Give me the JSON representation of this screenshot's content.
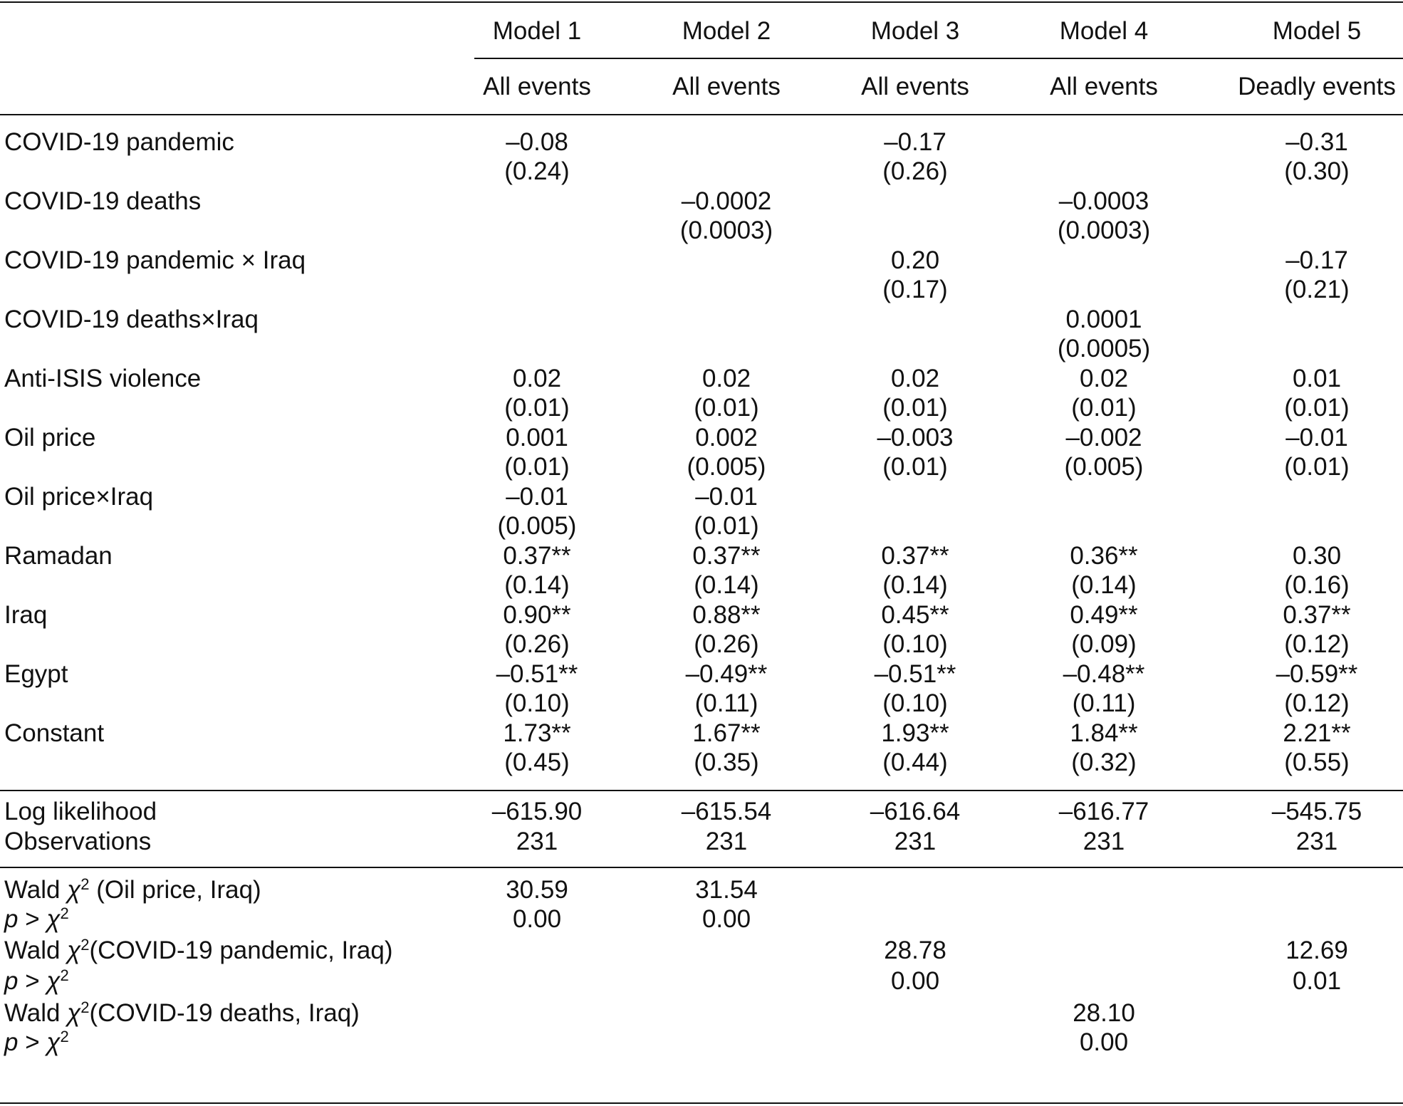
{
  "table": {
    "models": [
      "Model 1",
      "Model 2",
      "Model 3",
      "Model 4",
      "Model 5"
    ],
    "samples": [
      "All events",
      "All events",
      "All events",
      "All events",
      "Deadly events"
    ],
    "rows": [
      {
        "label": "COVID-19 pandemic",
        "coef": [
          "–0.08",
          null,
          "–0.17",
          null,
          "–0.31"
        ],
        "se": [
          "(0.24)",
          null,
          "(0.26)",
          null,
          "(0.30)"
        ]
      },
      {
        "label": "COVID-19 deaths",
        "coef": [
          null,
          "–0.0002",
          null,
          "–0.0003",
          null
        ],
        "se": [
          null,
          "(0.0003)",
          null,
          "(0.0003)",
          null
        ]
      },
      {
        "label": "COVID-19 pandemic × Iraq",
        "coef": [
          null,
          null,
          "0.20",
          null,
          "–0.17"
        ],
        "se": [
          null,
          null,
          "(0.17)",
          null,
          "(0.21)"
        ]
      },
      {
        "label": "COVID-19 deaths×Iraq",
        "coef": [
          null,
          null,
          null,
          "0.0001",
          null
        ],
        "se": [
          null,
          null,
          null,
          "(0.0005)",
          null
        ]
      },
      {
        "label": "Anti-ISIS violence",
        "coef": [
          "0.02",
          "0.02",
          "0.02",
          "0.02",
          "0.01"
        ],
        "se": [
          "(0.01)",
          "(0.01)",
          "(0.01)",
          "(0.01)",
          "(0.01)"
        ]
      },
      {
        "label": "Oil price",
        "coef": [
          "0.001",
          "0.002",
          "–0.003",
          "–0.002",
          "–0.01"
        ],
        "se": [
          "(0.01)",
          "(0.005)",
          "(0.01)",
          "(0.005)",
          "(0.01)"
        ]
      },
      {
        "label": "Oil price×Iraq",
        "coef": [
          "–0.01",
          "–0.01",
          null,
          null,
          null
        ],
        "se": [
          "(0.005)",
          "(0.01)",
          null,
          null,
          null
        ]
      },
      {
        "label": "Ramadan",
        "coef": [
          "0.37**",
          "0.37**",
          "0.37**",
          "0.36**",
          "0.30"
        ],
        "se": [
          "(0.14)",
          "(0.14)",
          "(0.14)",
          "(0.14)",
          "(0.16)"
        ]
      },
      {
        "label": "Iraq",
        "coef": [
          "0.90**",
          "0.88**",
          "0.45**",
          "0.49**",
          "0.37**"
        ],
        "se": [
          "(0.26)",
          "(0.26)",
          "(0.10)",
          "(0.09)",
          "(0.12)"
        ]
      },
      {
        "label": "Egypt",
        "coef": [
          "–0.51**",
          "–0.49**",
          "–0.51**",
          "–0.48**",
          "–0.59**"
        ],
        "se": [
          "(0.10)",
          "(0.11)",
          "(0.10)",
          "(0.11)",
          "(0.12)"
        ]
      },
      {
        "label": "Constant",
        "coef": [
          "1.73**",
          "1.67**",
          "1.93**",
          "1.84**",
          "2.21**"
        ],
        "se": [
          "(0.45)",
          "(0.35)",
          "(0.44)",
          "(0.32)",
          "(0.55)"
        ]
      }
    ],
    "fit": [
      {
        "label": "Log likelihood",
        "values": [
          "–615.90",
          "–615.54",
          "–616.64",
          "–616.77",
          "–545.75"
        ]
      },
      {
        "label": "Observations",
        "values": [
          "231",
          "231",
          "231",
          "231",
          "231"
        ]
      }
    ],
    "wald": [
      {
        "label": [
          {
            "t": "Wald "
          },
          {
            "t": "χ",
            "italic": true
          },
          {
            "t": "2",
            "sup": true
          },
          {
            "t": " (Oil price, Iraq)"
          }
        ],
        "values": [
          "30.59",
          "31.54",
          null,
          null,
          null
        ]
      },
      {
        "label": [
          {
            "t": "p",
            "italic": true
          },
          {
            "t": " > "
          },
          {
            "t": "χ",
            "italic": true
          },
          {
            "t": "2",
            "sup": true
          }
        ],
        "values": [
          "0.00",
          "0.00",
          null,
          null,
          null
        ]
      },
      {
        "label": [
          {
            "t": "Wald "
          },
          {
            "t": "χ",
            "italic": true
          },
          {
            "t": "2",
            "sup": true
          },
          {
            "t": "(COVID-19 pandemic, Iraq)"
          }
        ],
        "values": [
          null,
          null,
          "28.78",
          null,
          "12.69"
        ]
      },
      {
        "label": [
          {
            "t": "p",
            "italic": true
          },
          {
            "t": " > "
          },
          {
            "t": "χ",
            "italic": true
          },
          {
            "t": "2",
            "sup": true
          }
        ],
        "values": [
          null,
          null,
          "0.00",
          null,
          "0.01"
        ]
      },
      {
        "label": [
          {
            "t": "Wald "
          },
          {
            "t": "χ",
            "italic": true
          },
          {
            "t": "2",
            "sup": true
          },
          {
            "t": "(COVID-19 deaths, Iraq)"
          }
        ],
        "values": [
          null,
          null,
          null,
          "28.10",
          null
        ]
      },
      {
        "label": [
          {
            "t": "p",
            "italic": true
          },
          {
            "t": " > "
          },
          {
            "t": "χ",
            "italic": true
          },
          {
            "t": "2",
            "sup": true
          }
        ],
        "values": [
          null,
          null,
          null,
          "0.00",
          null
        ]
      }
    ]
  }
}
